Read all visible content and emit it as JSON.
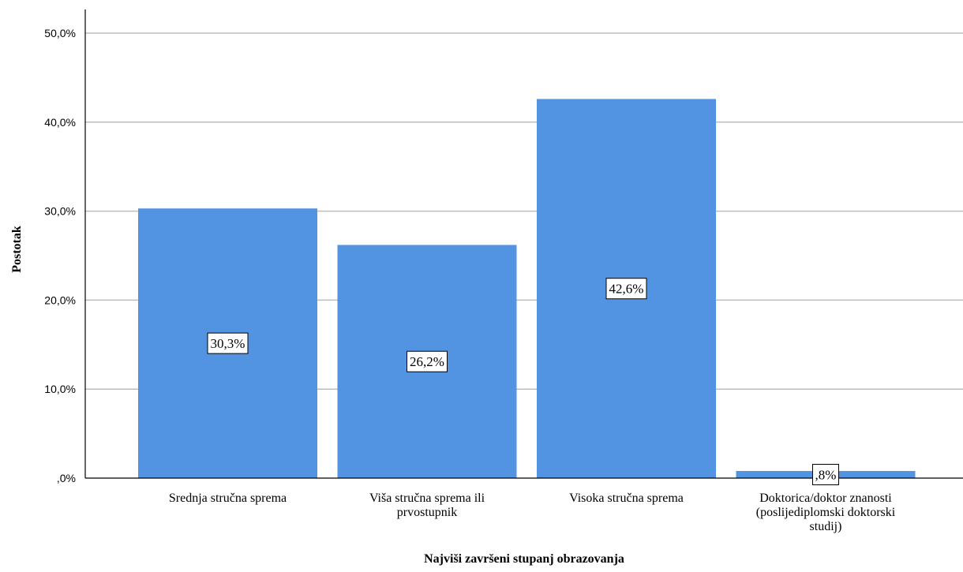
{
  "chart_data": {
    "type": "bar",
    "title": "",
    "xlabel": "Najviši završeni stupanj obrazovanja",
    "ylabel": "Postotak",
    "categories": [
      [
        "Srednja stručna sprema"
      ],
      [
        "Viša stručna sprema ili",
        "prvostupnik"
      ],
      [
        "Visoka stručna sprema"
      ],
      [
        "Doktorica/doktor znanosti",
        "(poslijediplomski doktorski",
        "studij)"
      ]
    ],
    "values": [
      30.3,
      26.2,
      42.6,
      0.8
    ],
    "data_labels": [
      "30,3%",
      "26,2%",
      "42,6%",
      ",8%"
    ],
    "yticks": [
      0,
      10,
      20,
      30,
      40,
      50
    ],
    "ytick_labels": [
      ",0%",
      "10,0%",
      "20,0%",
      "30,0%",
      "40,0%",
      "50,0%"
    ],
    "ylim": [
      0,
      50
    ],
    "grid": true,
    "legend": "none",
    "bar_color": "#5294e2"
  }
}
